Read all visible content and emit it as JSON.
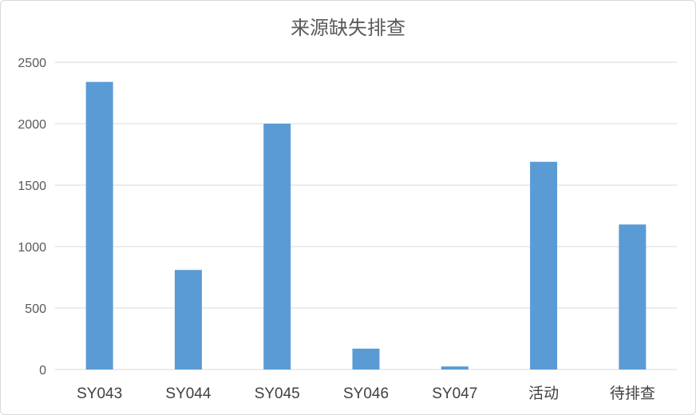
{
  "chart_data": {
    "type": "bar",
    "title": "来源缺失排查",
    "categories": [
      "SY043",
      "SY044",
      "SY045",
      "SY046",
      "SY047",
      "活动",
      "待排查"
    ],
    "values": [
      2340,
      810,
      2000,
      170,
      25,
      1690,
      1180
    ],
    "ylim": [
      0,
      2500
    ],
    "yticks": [
      0,
      500,
      1000,
      1500,
      2000,
      2500
    ],
    "xlabel": "",
    "ylabel": "",
    "grid": true,
    "legend": "none",
    "bar_color": "#5B9BD5",
    "grid_color": "#d9d9d9"
  }
}
